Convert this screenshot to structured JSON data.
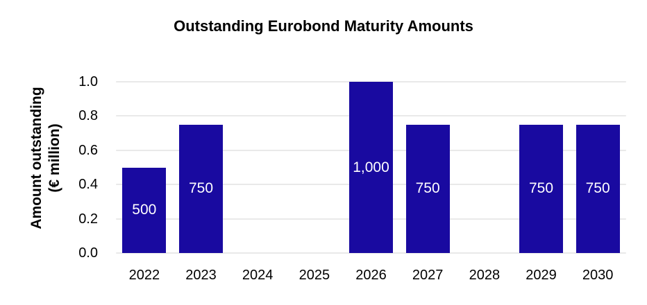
{
  "chart_data": {
    "type": "bar",
    "title": "Outstanding Eurobond Maturity Amounts",
    "ylabel": "Amount outstanding (€ million)",
    "ylabel_line1": "Amount outstanding",
    "ylabel_line2": "(€ million)",
    "xlabel": "",
    "categories": [
      "2022",
      "2023",
      "2024",
      "2025",
      "2026",
      "2027",
      "2028",
      "2029",
      "2030"
    ],
    "values_million": [
      500,
      750,
      0,
      0,
      1000,
      750,
      0,
      750,
      750
    ],
    "values_axis": [
      0.5,
      0.75,
      0,
      0,
      1.0,
      0.75,
      0,
      0.75,
      0.75
    ],
    "bar_labels": [
      "500",
      "750",
      "",
      "",
      "1,000",
      "750",
      "",
      "750",
      "750"
    ],
    "y_ticks": [
      "1.0",
      "0.8",
      "0.6",
      "0.4",
      "0.2",
      "0.0"
    ],
    "ylim": [
      0,
      1.0
    ],
    "grid": "horizontal",
    "legend": "none",
    "colors": {
      "bar": "#190aa0",
      "bar_label_text": "#ffffff",
      "gridline": "#e9e9e9",
      "axis_text": "#000000",
      "background": "#ffffff"
    }
  }
}
